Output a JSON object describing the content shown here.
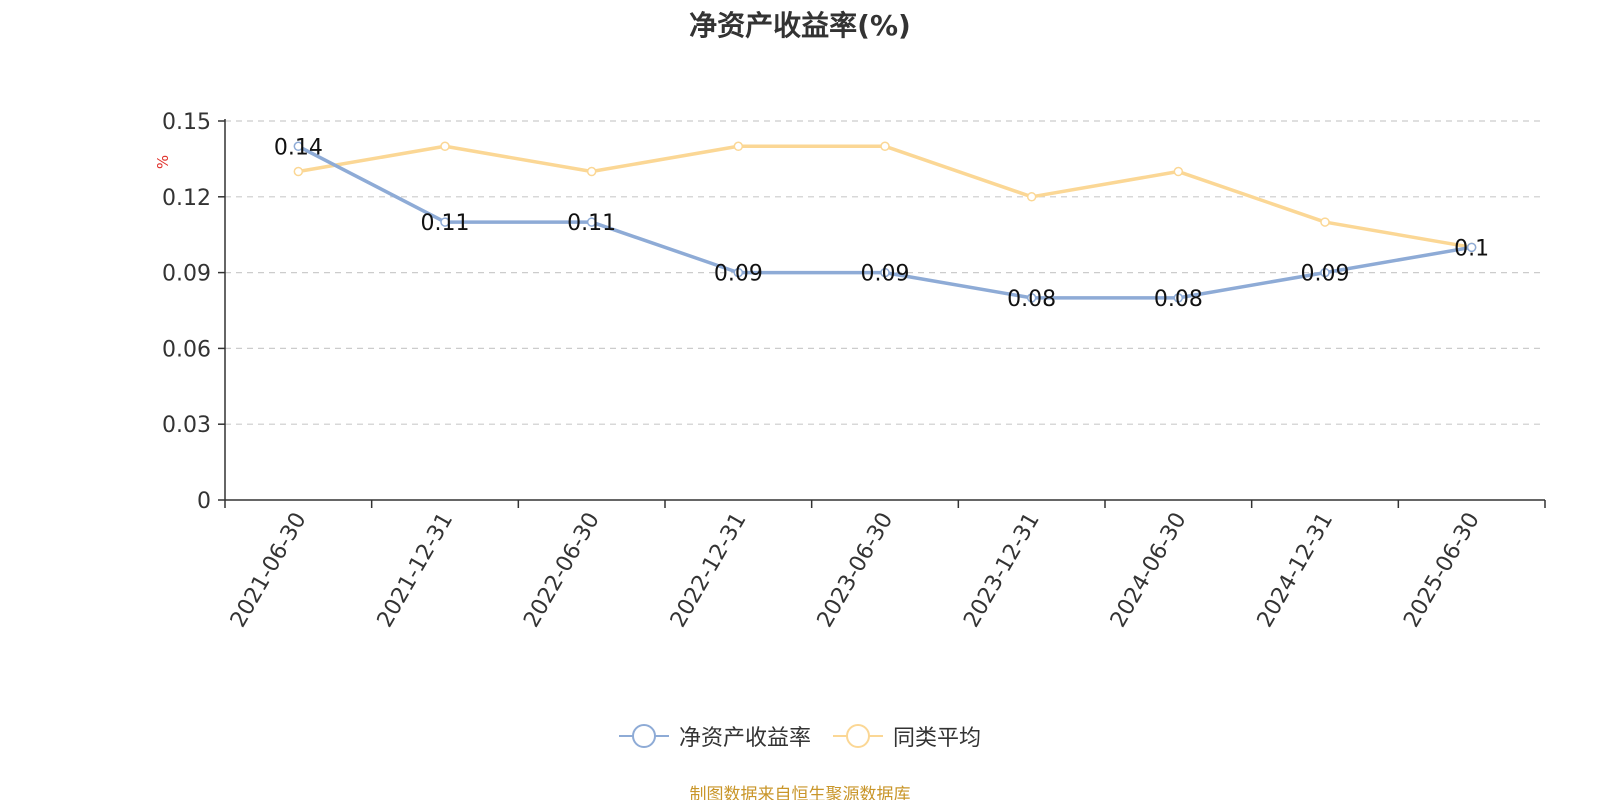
{
  "chart_data": {
    "type": "line",
    "title": "净资产收益率(%)",
    "ylabel": "%",
    "xlabel": "",
    "categories": [
      "2021-06-30",
      "2021-12-31",
      "2022-06-30",
      "2022-12-31",
      "2023-06-30",
      "2023-12-31",
      "2024-06-30",
      "2024-12-31",
      "2025-06-30"
    ],
    "series": [
      {
        "name": "净资产收益率",
        "values": [
          0.14,
          0.11,
          0.11,
          0.09,
          0.09,
          0.08,
          0.08,
          0.09,
          0.1
        ],
        "data_labels": [
          "0.14",
          "0.11",
          "0.11",
          "0.09",
          "0.09",
          "0.08",
          "0.08",
          "0.09",
          "0.1"
        ],
        "color": "#8eabd6"
      },
      {
        "name": "同类平均",
        "values": [
          0.13,
          0.14,
          0.13,
          0.14,
          0.14,
          0.12,
          0.13,
          0.11,
          0.1
        ],
        "color": "#fbd795"
      }
    ],
    "ylim": [
      0,
      0.15
    ],
    "yticks": [
      "0",
      "0.03",
      "0.06",
      "0.09",
      "0.12",
      "0.15"
    ],
    "grid": true,
    "legend_position": "bottom-center"
  },
  "colors": {
    "ylabel": "#e0302a",
    "source": "#c9962a",
    "axis": "#333333",
    "grid": "#cccccc"
  },
  "source_text": "制图数据来自恒生聚源数据库"
}
